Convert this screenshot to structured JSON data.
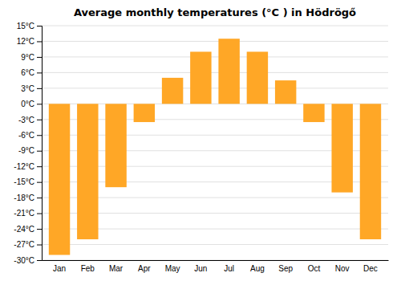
{
  "chart_data": {
    "type": "bar",
    "title": "Average monthly temperatures (°C ) in Hödrögő",
    "categories": [
      "Jan",
      "Feb",
      "Mar",
      "Apr",
      "May",
      "Jun",
      "Jul",
      "Aug",
      "Sep",
      "Oct",
      "Nov",
      "Dec"
    ],
    "values": [
      -29,
      -26,
      -16,
      -3.5,
      5,
      10,
      12.5,
      10,
      4.5,
      -3.5,
      -17,
      -26
    ],
    "color": "#FFA726",
    "ylim": [
      -30,
      15
    ],
    "yticks": [
      {
        "value": -30,
        "label": "-30°C"
      },
      {
        "value": -27,
        "label": "-27°C"
      },
      {
        "value": -24,
        "label": "-24°C"
      },
      {
        "value": -21,
        "label": "-21°C"
      },
      {
        "value": -18,
        "label": "-18°C"
      },
      {
        "value": -15,
        "label": "-15°C"
      },
      {
        "value": -12,
        "label": "-12°C"
      },
      {
        "value": -9,
        "label": "-9°C"
      },
      {
        "value": -6,
        "label": "-6°C"
      },
      {
        "value": -3,
        "label": "-3°C"
      },
      {
        "value": 0,
        "label": "0°C"
      },
      {
        "value": 3,
        "label": "3°C"
      },
      {
        "value": 6,
        "label": "6°C"
      },
      {
        "value": 9,
        "label": "9°C"
      },
      {
        "value": 12,
        "label": "12°C"
      },
      {
        "value": 15,
        "label": "15°C"
      }
    ],
    "grid": true
  }
}
